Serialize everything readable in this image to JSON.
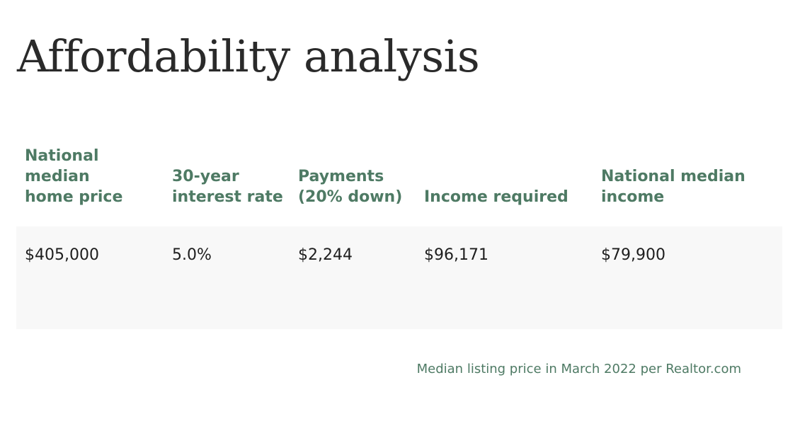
{
  "title": "Affordability analysis",
  "table": {
    "headers": [
      [
        "National",
        "median",
        "home price"
      ],
      [
        "30-year",
        "interest rate"
      ],
      [
        "Payments",
        "(20% down)"
      ],
      [
        "Income required"
      ],
      [
        "National median",
        "income"
      ]
    ],
    "row": [
      "$405,000",
      "5.0%",
      "$2,244",
      "$96,171",
      "$79,900"
    ]
  },
  "footnote": "Median listing price in March 2022 per Realtor.com",
  "colors": {
    "accent_green": "#4e7a64",
    "row_background": "#f8f8f8",
    "title_text": "#2a2a2a"
  }
}
